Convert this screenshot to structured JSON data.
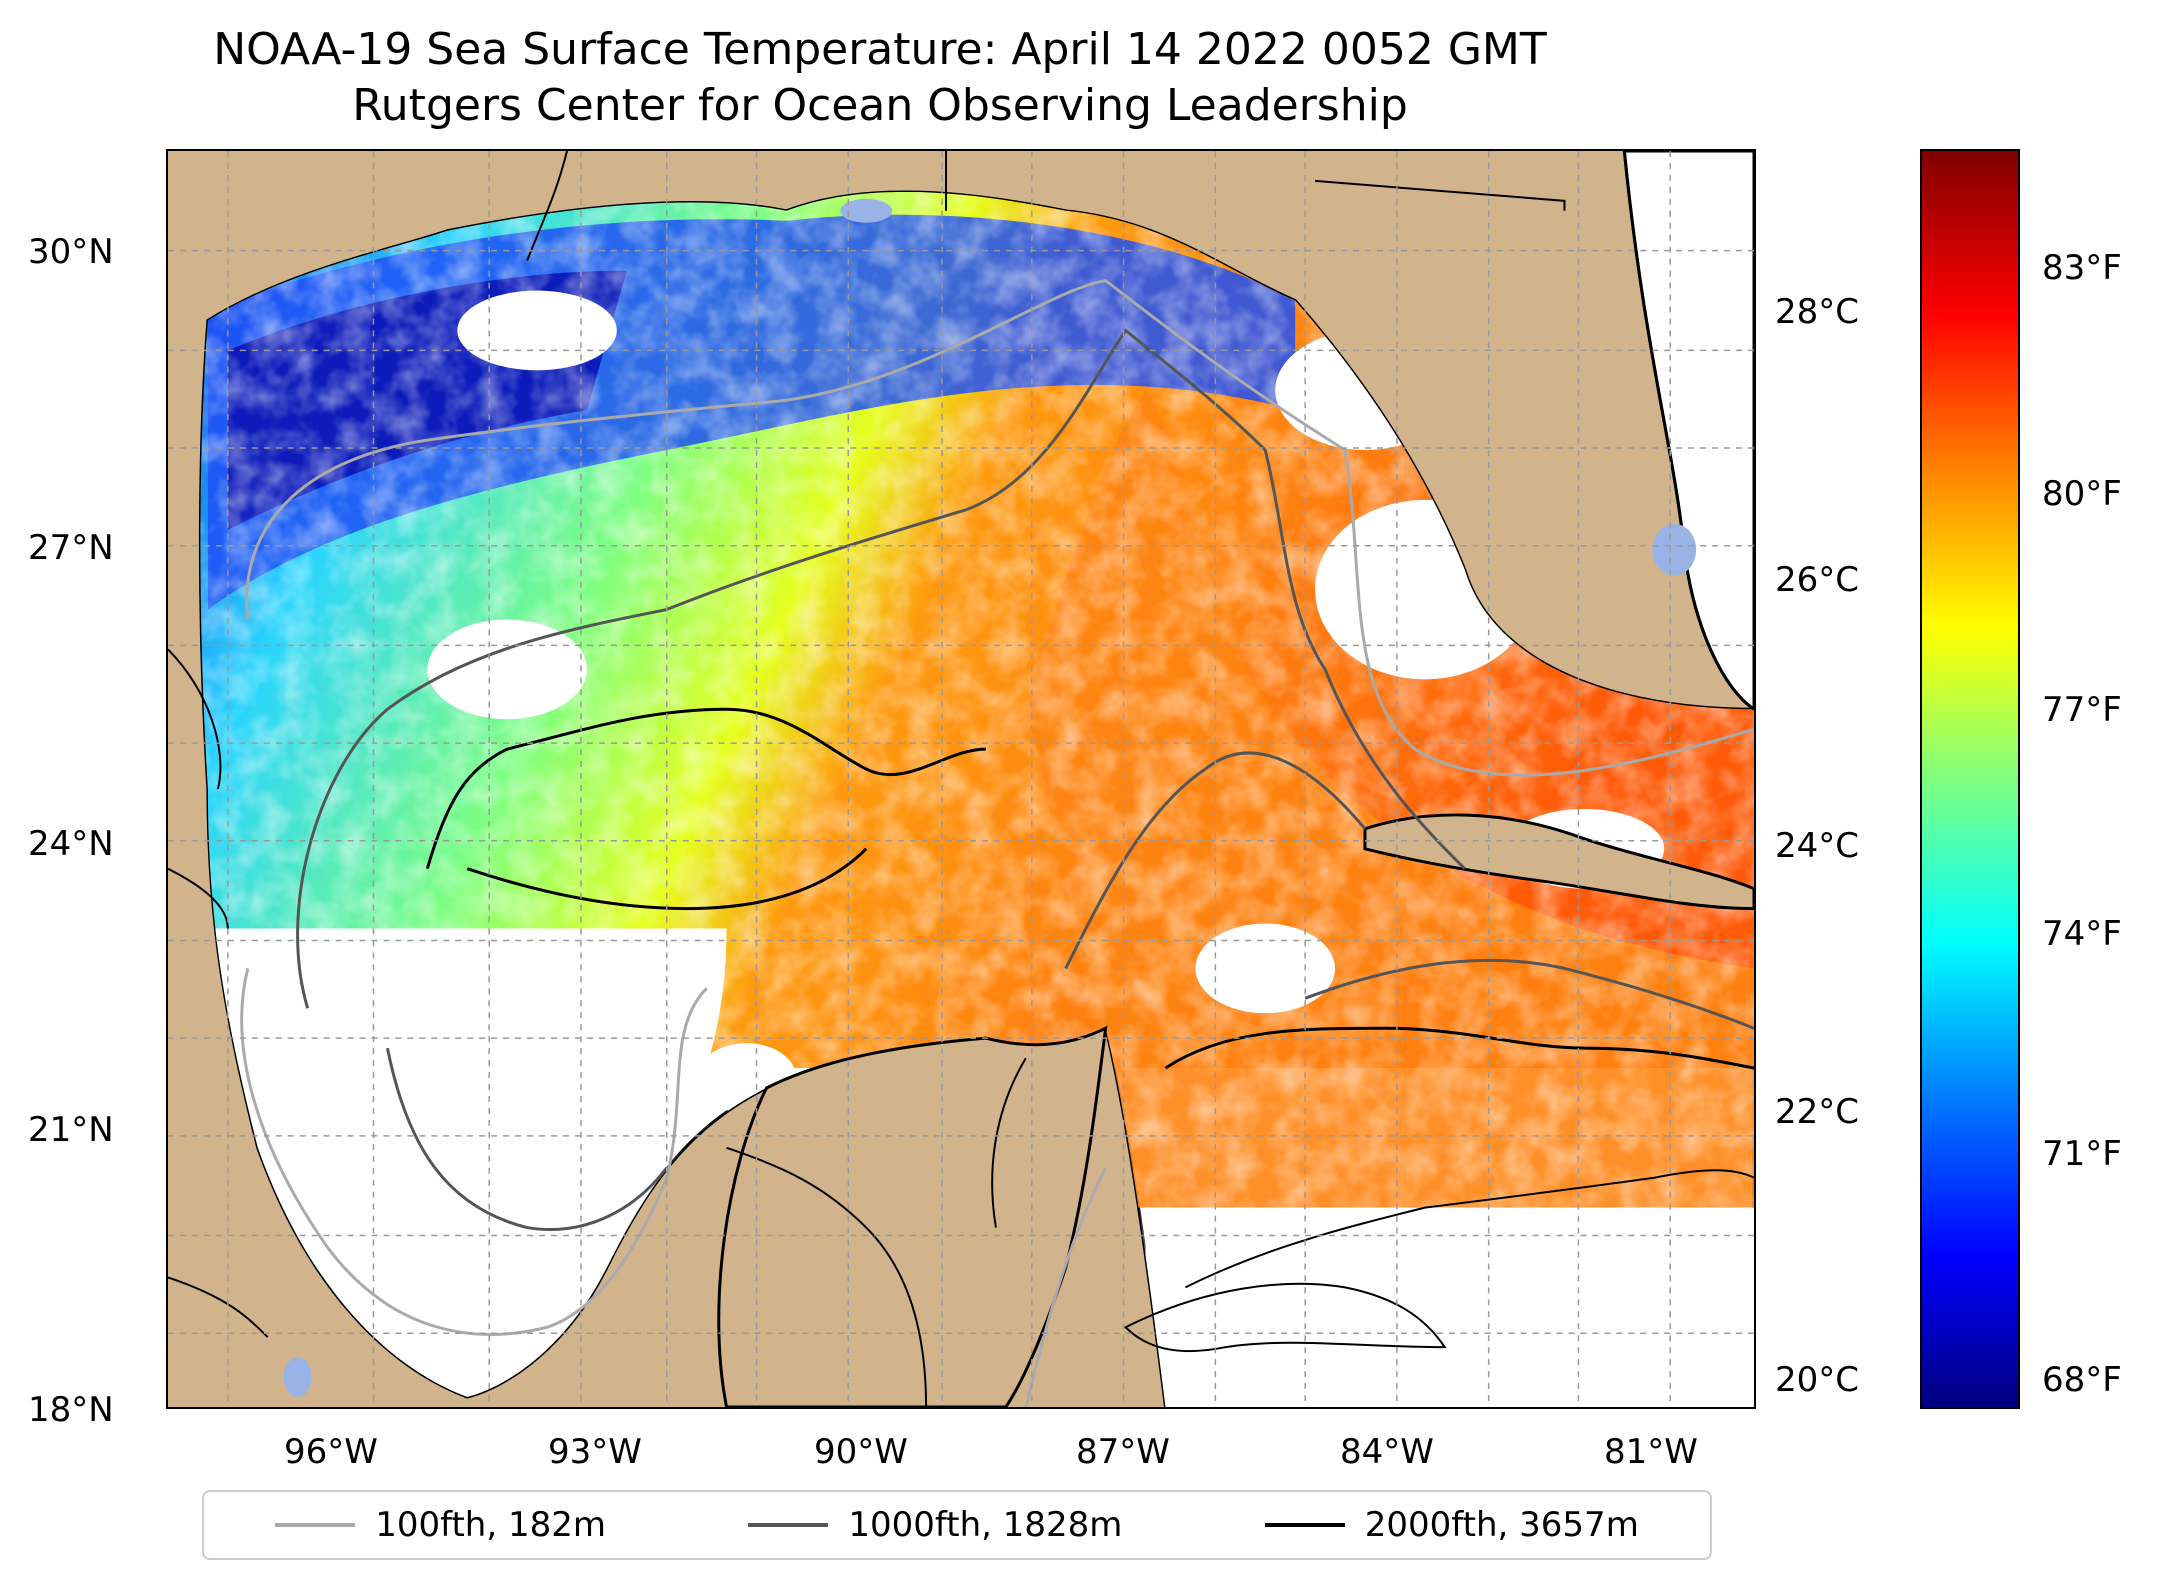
{
  "title": {
    "line1": "NOAA-19 Sea Surface Temperature: April 14 2022 0052 GMT",
    "line2": "Rutgers Center for Ocean Observing Leadership"
  },
  "map": {
    "lat_ticks": [
      "30°N",
      "27°N",
      "24°N",
      "21°N",
      "18°N"
    ],
    "lon_ticks": [
      "96°W",
      "93°W",
      "90°W",
      "87°W",
      "84°W",
      "81°W"
    ],
    "land_color": "#d2b48c",
    "water_color": "#99b3e6",
    "cloud_color": "#ffffff"
  },
  "colorbar": {
    "celsius_labels": [
      "28°C",
      "26°C",
      "24°C",
      "22°C",
      "20°C"
    ],
    "fahrenheit_labels": [
      "83°F",
      "80°F",
      "77°F",
      "74°F",
      "71°F",
      "68°F"
    ],
    "colormap": "jet"
  },
  "legend": {
    "items": [
      {
        "label": "100fth, 182m",
        "color": "#aaaaaa"
      },
      {
        "label": "1000fth, 1828m",
        "color": "#555555"
      },
      {
        "label": "2000fth, 3657m",
        "color": "#000000"
      }
    ]
  }
}
